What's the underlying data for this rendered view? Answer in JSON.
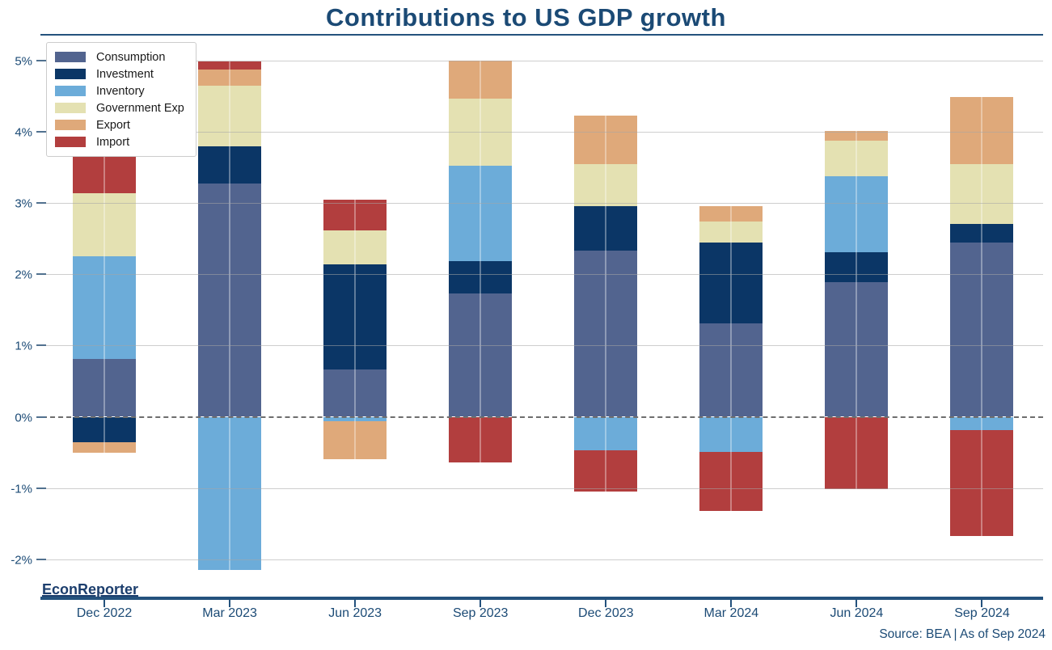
{
  "title": "Contributions to US GDP growth",
  "watermark": "EconReporter",
  "source_note": "Source: BEA | As of Sep 2024",
  "colors": {
    "accent_dark_blue": "#1b4a75",
    "axis_line": "#24527d",
    "consumption": "#52648f",
    "investment": "#0b3666",
    "inventory": "#6cacd9",
    "government": "#e4e1b2",
    "export": "#dfa97a",
    "import": "#b23e3e"
  },
  "chart_data": {
    "type": "bar",
    "stacked": true,
    "title": "Contributions to US GDP growth",
    "xlabel": "",
    "ylabel": "",
    "ylim": [
      -2.5,
      5.4
    ],
    "grid": true,
    "legend_position": "upper-left",
    "y_ticks": [
      {
        "label": "5%",
        "value": 5
      },
      {
        "label": "4%",
        "value": 4
      },
      {
        "label": "3%",
        "value": 3
      },
      {
        "label": "2%",
        "value": 2
      },
      {
        "label": "1%",
        "value": 1
      },
      {
        "label": "0%",
        "value": 0
      },
      {
        "label": "-1%",
        "value": -1
      },
      {
        "label": "-2%",
        "value": -2
      }
    ],
    "categories": [
      "Dec 2022",
      "Mar 2023",
      "Jun 2023",
      "Sep 2023",
      "Dec 2023",
      "Mar 2024",
      "Jun 2024",
      "Sep 2024"
    ],
    "series": [
      {
        "name": "Consumption",
        "color": "#52648f",
        "values": [
          0.81,
          3.27,
          0.66,
          1.73,
          2.33,
          1.31,
          1.89,
          2.44
        ]
      },
      {
        "name": "Investment",
        "color": "#0b3666",
        "values": [
          -0.36,
          0.53,
          1.48,
          0.45,
          0.62,
          1.14,
          0.42,
          0.27
        ]
      },
      {
        "name": "Inventory",
        "color": "#6cacd9",
        "values": [
          1.44,
          -2.15,
          -0.06,
          1.34,
          -0.47,
          -0.49,
          1.06,
          -0.19
        ]
      },
      {
        "name": "Government Exp",
        "color": "#e4e1b2",
        "values": [
          0.89,
          0.85,
          0.47,
          0.94,
          0.6,
          0.29,
          0.5,
          0.84
        ]
      },
      {
        "name": "Export",
        "color": "#dfa97a",
        "values": [
          -0.14,
          0.22,
          -0.54,
          0.54,
          0.68,
          0.21,
          0.14,
          0.94
        ]
      },
      {
        "name": "Import",
        "color": "#b23e3e",
        "values": [
          0.7,
          0.12,
          0.44,
          -0.64,
          -0.58,
          -0.83,
          -1.01,
          -1.48
        ]
      }
    ]
  }
}
